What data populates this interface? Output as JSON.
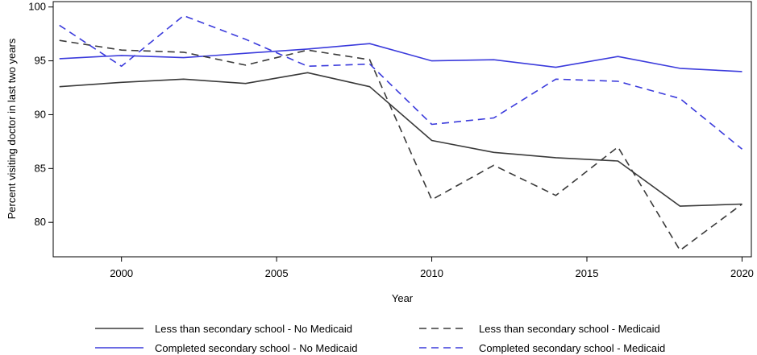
{
  "chart_data": {
    "type": "line",
    "title": "",
    "xlabel": "Year",
    "ylabel": "Percent visiting doctor in last two years",
    "xlim": [
      1997.8,
      2020.3
    ],
    "ylim": [
      76.8,
      100.5
    ],
    "x_ticks": [
      2000,
      2005,
      2010,
      2015,
      2020
    ],
    "y_ticks": [
      80,
      85,
      90,
      95,
      100
    ],
    "grid": false,
    "legend_position": "bottom",
    "x": [
      1998,
      2000,
      2002,
      2004,
      2006,
      2008,
      2010,
      2012,
      2014,
      2016,
      2018,
      2020
    ],
    "series": [
      {
        "name": "Less than secondary school - No Medicaid",
        "color": "#3a3a3a",
        "dash": "solid",
        "values": [
          92.6,
          93.0,
          93.3,
          92.9,
          93.9,
          92.6,
          87.6,
          86.5,
          86.0,
          85.7,
          81.5,
          81.7
        ]
      },
      {
        "name": "Completed secondary school - No Medicaid",
        "color": "#3b3bdc",
        "dash": "solid",
        "values": [
          95.2,
          95.5,
          95.3,
          95.7,
          96.1,
          96.6,
          95.0,
          95.1,
          94.4,
          95.4,
          94.3,
          94.0
        ]
      },
      {
        "name": "Less than secondary school - Medicaid",
        "color": "#3a3a3a",
        "dash": "dashed",
        "values": [
          96.9,
          96.0,
          95.8,
          94.6,
          96.0,
          95.1,
          82.1,
          85.3,
          82.5,
          87.0,
          77.4,
          81.7
        ]
      },
      {
        "name": "Completed secondary school - Medicaid",
        "color": "#3b3bdc",
        "dash": "dashed",
        "values": [
          98.3,
          94.5,
          99.2,
          97.0,
          94.5,
          94.7,
          89.1,
          89.7,
          93.3,
          93.1,
          91.5,
          86.8
        ]
      }
    ]
  }
}
